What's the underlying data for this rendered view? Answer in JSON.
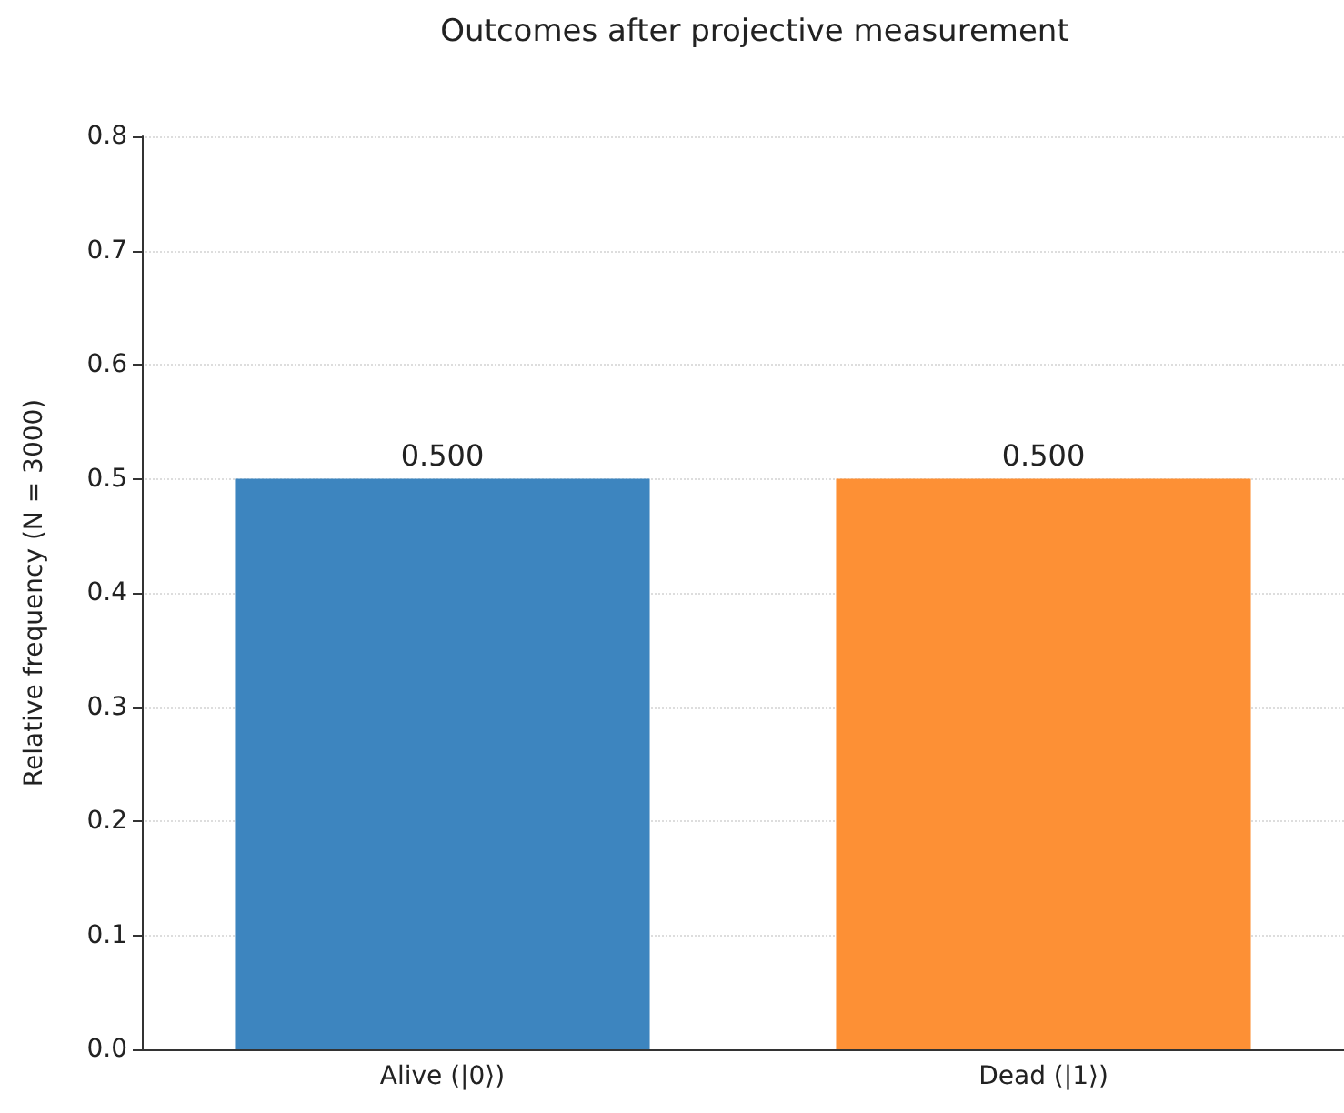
{
  "chart_data": {
    "type": "bar",
    "title": "Outcomes after projective measurement",
    "ylabel": "Relative frequency (N = 3000)",
    "categories": [
      "Alive (|0⟩)",
      "Dead (|1⟩)"
    ],
    "values": [
      0.5,
      0.5
    ],
    "value_labels": [
      "0.500",
      "0.500"
    ],
    "colors": [
      "#3d85bf",
      "#fd9035"
    ],
    "ylim": [
      0,
      0.8
    ],
    "yticks": [
      {
        "value": 0,
        "label": "0.0"
      },
      0.1,
      0.2,
      0.3,
      0.4,
      0.5,
      0.6,
      0.7,
      0.8
    ],
    "grid": "y"
  }
}
